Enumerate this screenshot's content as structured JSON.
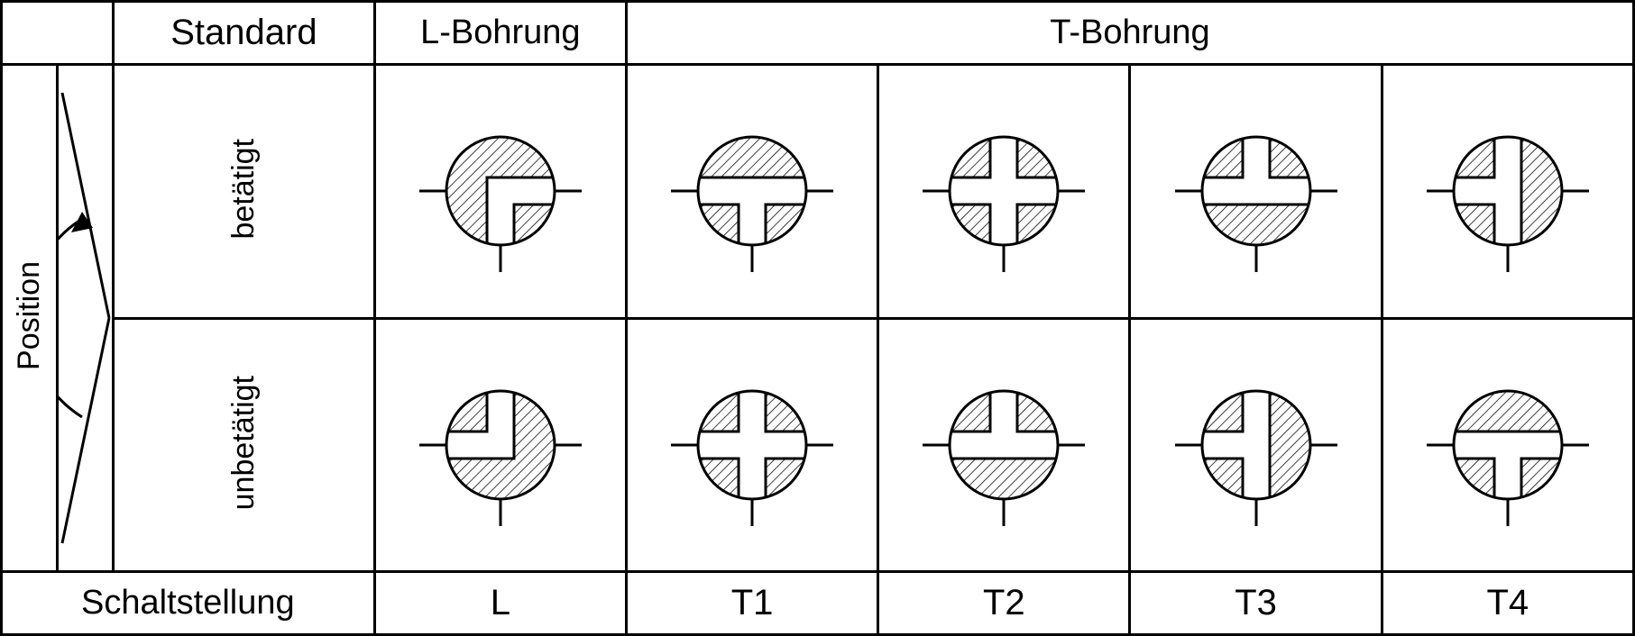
{
  "stroke_color": "#000000",
  "bg_color": "#ffffff",
  "stroke_width": 3,
  "hatch_spacing": 8,
  "circle_radius": 60,
  "channel_half_width": 15,
  "headers": {
    "standard": "Standard",
    "l_bore": "L-Bohrung",
    "t_bore": "T-Bohrung",
    "position": "Position",
    "actuated": "betätigt",
    "unactuated": "unbetätigt",
    "switch_pos": "Schaltstellung"
  },
  "columns": [
    "L",
    "T1",
    "T2",
    "T3",
    "T4"
  ],
  "symbols": {
    "actuated": {
      "L": {
        "open": [
          "right",
          "bottom"
        ]
      },
      "T1": {
        "open": [
          "left",
          "right",
          "bottom"
        ]
      },
      "T2": {
        "open": [
          "left",
          "right",
          "top",
          "bottom"
        ]
      },
      "T3": {
        "open": [
          "left",
          "right",
          "top"
        ]
      },
      "T4": {
        "open": [
          "left",
          "top",
          "bottom"
        ]
      }
    },
    "unactuated": {
      "L": {
        "open": [
          "left",
          "top"
        ]
      },
      "T1": {
        "open": [
          "left",
          "right",
          "top",
          "bottom"
        ]
      },
      "T2": {
        "open": [
          "left",
          "right",
          "top"
        ]
      },
      "T3": {
        "open": [
          "left",
          "top",
          "bottom"
        ]
      },
      "T4": {
        "open": [
          "left",
          "right",
          "bottom"
        ]
      }
    }
  },
  "ports_always_drawn": [
    "left",
    "right",
    "bottom"
  ],
  "port_top_drawn": false
}
